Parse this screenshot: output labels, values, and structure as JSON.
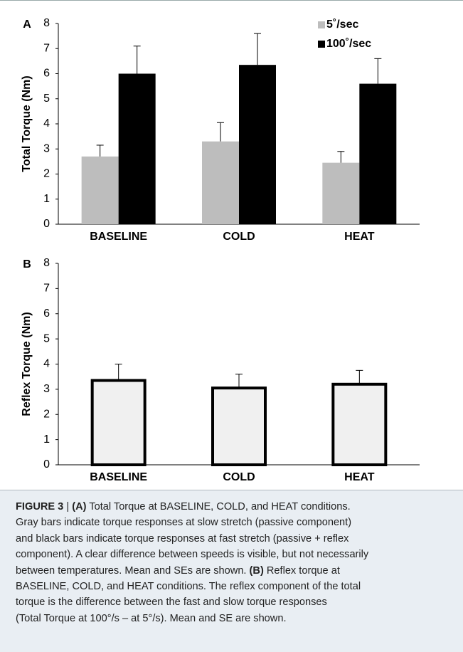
{
  "chart_data": [
    {
      "type": "bar",
      "panel_label": "A",
      "ylabel": "Total Torque (Nm)",
      "categories": [
        "BASELINE",
        "COLD",
        "HEAT"
      ],
      "series": [
        {
          "name": "5˚/sec",
          "color": "#bdbdbd",
          "values": [
            2.7,
            3.3,
            2.45
          ],
          "errors": [
            0.45,
            0.75,
            0.45
          ]
        },
        {
          "name": "100˚/sec",
          "color": "#000000",
          "values": [
            6.0,
            6.35,
            5.6
          ],
          "errors": [
            1.1,
            1.25,
            1.0
          ]
        }
      ],
      "ylim": [
        0,
        8
      ],
      "yticks": [
        0,
        1,
        2,
        3,
        4,
        5,
        6,
        7,
        8
      ],
      "legend": "upper right"
    },
    {
      "type": "bar",
      "panel_label": "B",
      "ylabel": "Reflex Torque (Nm)",
      "categories": [
        "BASELINE",
        "COLD",
        "HEAT"
      ],
      "series": [
        {
          "color": "#f0f0f0",
          "edgecolor": "#000000",
          "values": [
            3.35,
            3.05,
            3.2
          ],
          "errors": [
            0.65,
            0.55,
            0.55
          ]
        }
      ],
      "ylim": [
        0,
        8
      ],
      "yticks": [
        0,
        1,
        2,
        3,
        4,
        5,
        6,
        7,
        8
      ]
    }
  ],
  "caption": {
    "lines": [
      [
        {
          "text": "FIGURE 3",
          "bold": true
        },
        {
          "text": " | "
        },
        {
          "text": "(A)",
          "bold": true
        },
        {
          "text": " Total Torque at BASELINE, COLD, and HEAT conditions."
        }
      ],
      [
        {
          "text": "Gray bars indicate torque responses at slow stretch (passive component)"
        }
      ],
      [
        {
          "text": "and black bars indicate torque responses at fast stretch (passive + reflex"
        }
      ],
      [
        {
          "text": "component). A clear difference between speeds is visible, but not necessarily"
        }
      ],
      [
        {
          "text": "between temperatures. Mean and SEs are shown. "
        },
        {
          "text": "(B)",
          "bold": true
        },
        {
          "text": " Reflex torque at"
        }
      ],
      [
        {
          "text": "BASELINE, COLD, and HEAT conditions. The reflex component of the total"
        }
      ],
      [
        {
          "text": "torque is the difference between the fast and slow torque responses"
        }
      ],
      [
        {
          "text": "(Total Torque at 100°/s – at 5°/s). Mean and SE are shown."
        }
      ]
    ]
  }
}
